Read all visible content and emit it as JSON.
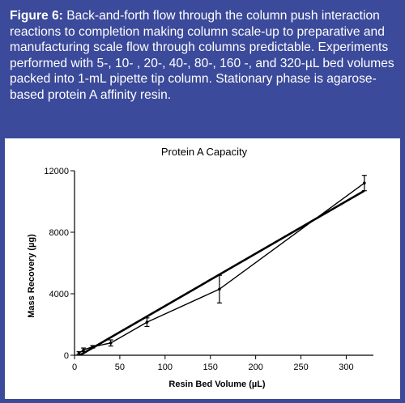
{
  "figure": {
    "label": "Figure 6:",
    "caption": "Back-and-forth flow through the column push interaction reactions to completion making column scale-up to preparative and manufacturing scale flow through columns predictable. Experiments performed with 5-, 10- , 20-, 40-, 80-, 160 -, and 320-µL bed volumes packed into 1-mL pipette tip column. Stationary phase is agarose-based protein A affinity resin."
  },
  "colors": {
    "background": "#3b4a9a",
    "panel": "#ffffff",
    "caption_text": "#ffffff",
    "series": "#000000"
  },
  "chart_data": {
    "type": "line",
    "title": "Protein A Capacity",
    "xlabel": "Resin Bed Volume (µL)",
    "ylabel": "Mass Recovery (µg)",
    "xlim": [
      0,
      330
    ],
    "ylim": [
      0,
      12000
    ],
    "xticks": [
      0,
      50,
      100,
      150,
      200,
      250,
      300
    ],
    "yticks": [
      0,
      4000,
      8000,
      12000
    ],
    "grid": false,
    "series": [
      {
        "kind": "measured",
        "x": [
          5,
          10,
          20,
          40,
          80,
          160,
          320
        ],
        "y": [
          150,
          350,
          550,
          800,
          2150,
          4300,
          11200
        ],
        "err": [
          80,
          120,
          80,
          200,
          280,
          900,
          500
        ]
      },
      {
        "kind": "linear-fit",
        "x": [
          0,
          320
        ],
        "y": [
          -200,
          10700
        ]
      }
    ]
  }
}
